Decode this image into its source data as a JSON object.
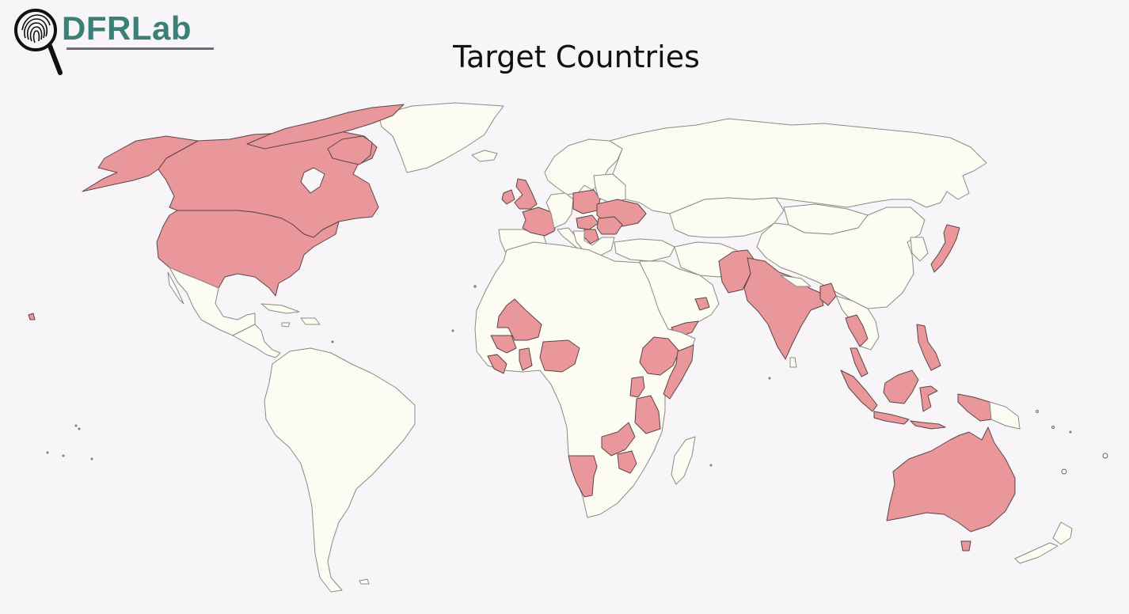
{
  "brand": {
    "name": "DFRLab",
    "color": "#3a8076",
    "icon": "fingerprint-magnifier-icon"
  },
  "title": "Target Countries",
  "legend_colors": {
    "target": "#e9979a",
    "other": "#fdfcf3",
    "background": "#f7f5f7"
  },
  "target_countries": [
    "United States",
    "Canada",
    "United Kingdom",
    "France",
    "Poland",
    "Ukraine",
    "Hungary",
    "Romania",
    "Serbia",
    "Mali",
    "Guinea",
    "Sierra Leone",
    "Liberia",
    "Ghana",
    "Nigeria",
    "Ethiopia",
    "Somalia",
    "Yemen",
    "Oman",
    "Uganda",
    "Rwanda",
    "Tanzania",
    "Malawi",
    "Zambia",
    "Zimbabwe",
    "Namibia",
    "Pakistan",
    "India",
    "Bangladesh",
    "Thailand",
    "Malaysia",
    "Indonesia",
    "Philippines",
    "Japan",
    "Australia"
  ]
}
